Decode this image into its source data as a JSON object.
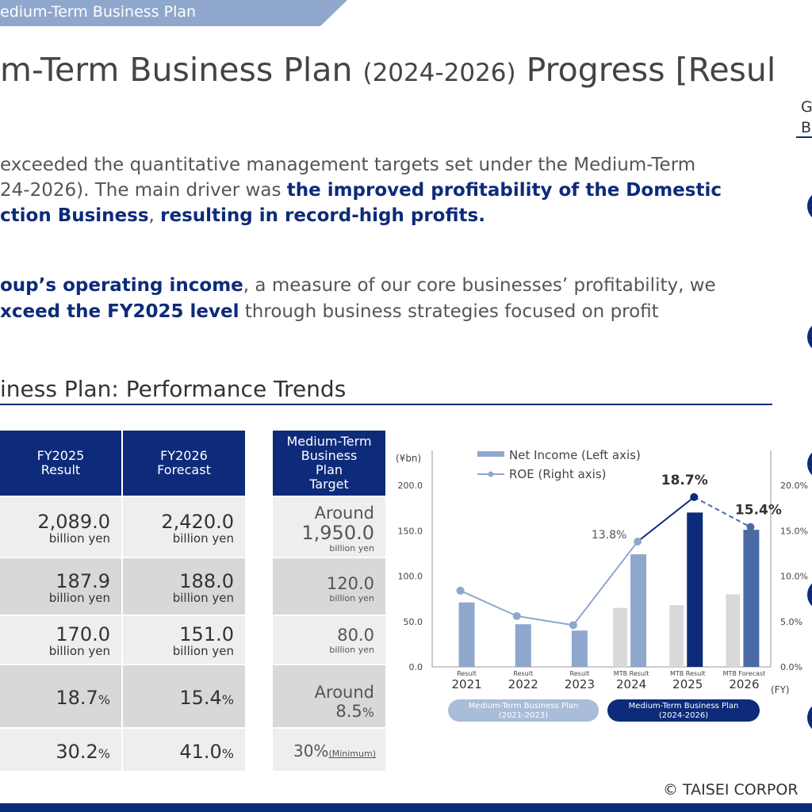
{
  "header": {
    "banner": "edium-Term Business Plan",
    "title_main": "m-Term Business Plan ",
    "title_years": "(2024-2026)",
    "title_end": " Progress [Resul"
  },
  "sidebar": {
    "gb_line1": "G",
    "gb_line2": "B"
  },
  "paragraph1": {
    "line1": "exceeded the quantitative management targets set under the Medium-Term",
    "line2_plain": "24-2026). The main driver was ",
    "line2_bold": "the improved profitability of the Domestic",
    "line3_bold1": "ction Business",
    "line3_plain": ", ",
    "line3_bold2": "resulting in record-high profits."
  },
  "paragraph2": {
    "line1_bold": "oup’s operating income",
    "line1_plain": ", a measure of our core businesses’ profitability, we",
    "line2_bold": "xceed the FY2025 level",
    "line2_plain": " through business strategies focused on profit"
  },
  "section_title": "iness Plan: Performance Trends",
  "table": {
    "headers": [
      {
        "l1": "FY2025",
        "l2": "Result"
      },
      {
        "l1": "FY2026",
        "l2": "Forecast"
      },
      {
        "l1": "Medium-Term",
        "l2": "Business",
        "l3": "Plan",
        "l4": "Target"
      }
    ],
    "rows": [
      {
        "fy25": "2,089.0",
        "fy25_unit": "billion yen",
        "fy26": "2,420.0",
        "fy26_unit": "billion yen",
        "target_pre": "Around",
        "target": "1,950.0",
        "target_unit": "billion yen"
      },
      {
        "fy25": "187.9",
        "fy25_unit": "billion yen",
        "fy26": "188.0",
        "fy26_unit": "billion yen",
        "target": "120.0",
        "target_unit": "billion yen"
      },
      {
        "fy25": "170.0",
        "fy25_unit": "billion yen",
        "fy26": "151.0",
        "fy26_unit": "billion yen",
        "target": "80.0",
        "target_unit": "billion yen"
      },
      {
        "fy25": "18.7",
        "fy26": "15.4",
        "pct": "%",
        "target_pre": "Around",
        "target": "8.5",
        "target_pct": "%"
      },
      {
        "fy25": "30.2",
        "fy26": "41.0",
        "pct": "%",
        "target": "30%",
        "target_note": "(Minimum)"
      }
    ]
  },
  "chart_data": {
    "type": "bar",
    "y_unit": "(¥bn)",
    "x_unit": "(FY)",
    "legend": [
      {
        "label": "Net Income (Left axis)",
        "color": "#8fa7cc"
      },
      {
        "label": "ROE (Right axis)",
        "color": "#8fa7cc"
      }
    ],
    "categories": [
      "2021",
      "2022",
      "2023",
      "2024",
      "2025",
      "2026"
    ],
    "category_sublabels": [
      "Result",
      "Result",
      "Result",
      "MTB Result",
      "MTB Result",
      "MTB Forecast"
    ],
    "left_axis": {
      "min": 0,
      "max": 200,
      "ticks": [
        "0.0",
        "50.0",
        "100.0",
        "150.0",
        "200.0"
      ]
    },
    "right_axis": {
      "min": 0,
      "max": 20,
      "ticks": [
        "0.0%",
        "5.0%",
        "10.0%",
        "15.0%",
        "20.0%"
      ]
    },
    "net_income": [
      71,
      47,
      40,
      124,
      170,
      151
    ],
    "grey_bars": [
      null,
      null,
      null,
      65,
      68,
      80
    ],
    "roe": [
      8.4,
      5.6,
      4.6,
      13.8,
      18.7,
      15.4
    ],
    "roe_labels": [
      null,
      null,
      null,
      "13.8%",
      "18.7%",
      "15.4%"
    ],
    "periods": [
      {
        "label_l1": "Medium-Term Business Plan",
        "label_l2": "(2021-2023)",
        "color": "#a9bcd9"
      },
      {
        "label_l1": "Medium-Term Business Plan",
        "label_l2": "(2024-2026)",
        "color": "#0d2b7a"
      }
    ],
    "colors": {
      "light_bar": "#8fa7cc",
      "dark_bar": "#0d2b7a",
      "mid_bar": "#4a6aa5",
      "grey_bar": "#d9d9d9"
    }
  },
  "footer": {
    "copyright": "© TAISEI CORPOR"
  }
}
